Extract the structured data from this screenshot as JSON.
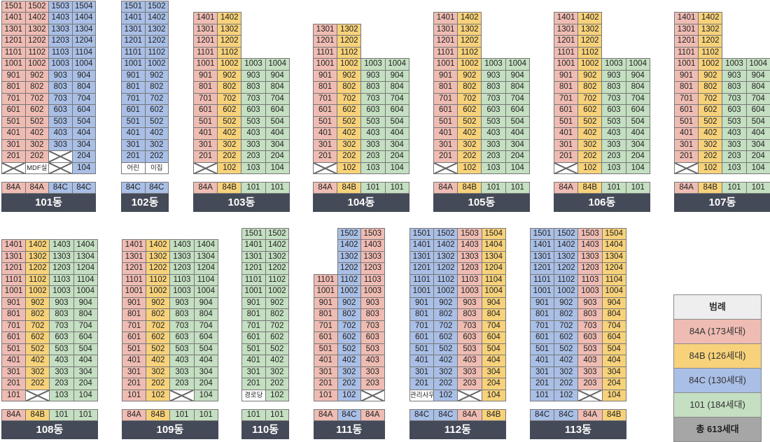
{
  "types": {
    "A": {
      "label": "84A",
      "color": "#efbcb3"
    },
    "B": {
      "label": "84B",
      "color": "#f7d27a"
    },
    "C": {
      "label": "84C",
      "color": "#a9bfe6"
    },
    "D": {
      "label": "101",
      "color": "#c4dfc1"
    }
  },
  "legend": {
    "title": "범례",
    "items": [
      {
        "text": "84A (173세대)",
        "color": "#efbcb3"
      },
      {
        "text": "84B (126세대)",
        "color": "#f7d27a"
      },
      {
        "text": "84C (130세대)",
        "color": "#a9bfe6"
      },
      {
        "text": "101 (184세대)",
        "color": "#c4dfc1"
      }
    ],
    "total": "총 613세대"
  },
  "buildings": [
    {
      "name": "101동",
      "types": [
        "A",
        "A",
        "C",
        "C"
      ],
      "rows": [
        [
          "1501",
          "1502",
          "1503",
          "1504"
        ],
        [
          "1401",
          "1402",
          "1403",
          "1404"
        ],
        [
          "1301",
          "1302",
          "1303",
          "1304"
        ],
        [
          "1201",
          "1202",
          "1203",
          "1204"
        ],
        [
          "1101",
          "1102",
          "1103",
          "1104"
        ],
        [
          "1001",
          "1002",
          "1003",
          "1004"
        ],
        [
          "901",
          "902",
          "903",
          "904"
        ],
        [
          "801",
          "802",
          "803",
          "804"
        ],
        [
          "701",
          "702",
          "703",
          "704"
        ],
        [
          "601",
          "602",
          "603",
          "604"
        ],
        [
          "501",
          "502",
          "503",
          "504"
        ],
        [
          "401",
          "402",
          "403",
          "404"
        ],
        [
          "301",
          "302",
          "303",
          "304"
        ],
        [
          "201",
          "202",
          "x",
          "204"
        ],
        [
          "x",
          "MDF실",
          "x",
          "104"
        ]
      ]
    },
    {
      "name": "102동",
      "types": [
        "C",
        "C"
      ],
      "rows": [
        [
          "1501",
          "1502"
        ],
        [
          "1401",
          "1402"
        ],
        [
          "1301",
          "1302"
        ],
        [
          "1201",
          "1202"
        ],
        [
          "1101",
          "1102"
        ],
        [
          "1001",
          "1002"
        ],
        [
          "901",
          "902"
        ],
        [
          "801",
          "802"
        ],
        [
          "701",
          "702"
        ],
        [
          "601",
          "602"
        ],
        [
          "501",
          "502"
        ],
        [
          "401",
          "402"
        ],
        [
          "301",
          "302"
        ],
        [
          "201",
          "202"
        ],
        [
          "어린",
          "이집"
        ]
      ]
    },
    {
      "name": "103동",
      "types": [
        "A",
        "B",
        "D",
        "D"
      ],
      "rows": [
        [
          "1401",
          "1402",
          "",
          ""
        ],
        [
          "1301",
          "1302",
          "",
          ""
        ],
        [
          "1201",
          "1202",
          "",
          ""
        ],
        [
          "1101",
          "1102",
          "",
          ""
        ],
        [
          "1001",
          "1002",
          "1003",
          "1004"
        ],
        [
          "901",
          "902",
          "903",
          "904"
        ],
        [
          "801",
          "802",
          "803",
          "804"
        ],
        [
          "701",
          "702",
          "703",
          "704"
        ],
        [
          "601",
          "602",
          "603",
          "604"
        ],
        [
          "501",
          "502",
          "503",
          "504"
        ],
        [
          "401",
          "402",
          "403",
          "404"
        ],
        [
          "301",
          "302",
          "303",
          "304"
        ],
        [
          "201",
          "202",
          "203",
          "204"
        ],
        [
          "x",
          "102",
          "103",
          "104"
        ]
      ]
    },
    {
      "name": "104동",
      "types": [
        "A",
        "B",
        "D",
        "D"
      ],
      "rows": [
        [
          "1301",
          "1302",
          "",
          ""
        ],
        [
          "1201",
          "1202",
          "",
          ""
        ],
        [
          "1101",
          "1102",
          "",
          ""
        ],
        [
          "1001",
          "1002",
          "1003",
          "1004"
        ],
        [
          "901",
          "902",
          "903",
          "904"
        ],
        [
          "801",
          "802",
          "803",
          "804"
        ],
        [
          "701",
          "702",
          "703",
          "704"
        ],
        [
          "601",
          "602",
          "603",
          "604"
        ],
        [
          "501",
          "502",
          "503",
          "504"
        ],
        [
          "401",
          "402",
          "403",
          "404"
        ],
        [
          "301",
          "302",
          "303",
          "304"
        ],
        [
          "201",
          "202",
          "203",
          "204"
        ],
        [
          "x",
          "102",
          "103",
          "104"
        ]
      ]
    },
    {
      "name": "105동",
      "types": [
        "A",
        "B",
        "D",
        "D"
      ],
      "rows": [
        [
          "1401",
          "1402",
          "",
          ""
        ],
        [
          "1301",
          "1302",
          "",
          ""
        ],
        [
          "1201",
          "1202",
          "",
          ""
        ],
        [
          "1101",
          "1102",
          "",
          ""
        ],
        [
          "1001",
          "1002",
          "1003",
          "1004"
        ],
        [
          "901",
          "902",
          "903",
          "904"
        ],
        [
          "801",
          "802",
          "803",
          "804"
        ],
        [
          "701",
          "702",
          "703",
          "704"
        ],
        [
          "601",
          "602",
          "603",
          "604"
        ],
        [
          "501",
          "502",
          "503",
          "504"
        ],
        [
          "401",
          "402",
          "403",
          "404"
        ],
        [
          "301",
          "302",
          "303",
          "304"
        ],
        [
          "201",
          "202",
          "203",
          "204"
        ],
        [
          "x",
          "102",
          "103",
          "104"
        ]
      ]
    },
    {
      "name": "106동",
      "types": [
        "A",
        "B",
        "D",
        "D"
      ],
      "rows": [
        [
          "1401",
          "1402",
          "",
          ""
        ],
        [
          "1301",
          "1302",
          "",
          ""
        ],
        [
          "1201",
          "1202",
          "",
          ""
        ],
        [
          "1101",
          "1102",
          "",
          ""
        ],
        [
          "1001",
          "1002",
          "1003",
          "1004"
        ],
        [
          "901",
          "902",
          "903",
          "904"
        ],
        [
          "801",
          "802",
          "803",
          "804"
        ],
        [
          "701",
          "702",
          "703",
          "704"
        ],
        [
          "601",
          "602",
          "603",
          "604"
        ],
        [
          "501",
          "502",
          "503",
          "504"
        ],
        [
          "401",
          "402",
          "403",
          "404"
        ],
        [
          "301",
          "302",
          "303",
          "304"
        ],
        [
          "201",
          "202",
          "203",
          "204"
        ],
        [
          "x",
          "102",
          "103",
          "104"
        ]
      ]
    },
    {
      "name": "107동",
      "types": [
        "A",
        "B",
        "D",
        "D"
      ],
      "rows": [
        [
          "1401",
          "1402",
          "",
          ""
        ],
        [
          "1301",
          "1302",
          "",
          ""
        ],
        [
          "1201",
          "1202",
          "",
          ""
        ],
        [
          "1101",
          "1102",
          "",
          ""
        ],
        [
          "1001",
          "1002",
          "1003",
          "1004"
        ],
        [
          "901",
          "902",
          "903",
          "904"
        ],
        [
          "801",
          "802",
          "803",
          "804"
        ],
        [
          "701",
          "702",
          "703",
          "704"
        ],
        [
          "601",
          "602",
          "603",
          "604"
        ],
        [
          "501",
          "502",
          "503",
          "504"
        ],
        [
          "401",
          "402",
          "403",
          "404"
        ],
        [
          "301",
          "302",
          "303",
          "304"
        ],
        [
          "201",
          "202",
          "203",
          "204"
        ],
        [
          "x",
          "102",
          "103",
          "104"
        ]
      ]
    },
    {
      "name": "108동",
      "types": [
        "A",
        "B",
        "D",
        "D"
      ],
      "rows": [
        [
          "1401",
          "1402",
          "1403",
          "1404"
        ],
        [
          "1301",
          "1302",
          "1303",
          "1304"
        ],
        [
          "1201",
          "1202",
          "1203",
          "1204"
        ],
        [
          "1101",
          "1102",
          "1103",
          "1104"
        ],
        [
          "1001",
          "1002",
          "1003",
          "1004"
        ],
        [
          "901",
          "902",
          "903",
          "904"
        ],
        [
          "801",
          "802",
          "803",
          "804"
        ],
        [
          "701",
          "702",
          "703",
          "704"
        ],
        [
          "601",
          "602",
          "603",
          "604"
        ],
        [
          "501",
          "502",
          "503",
          "504"
        ],
        [
          "401",
          "402",
          "403",
          "404"
        ],
        [
          "301",
          "302",
          "303",
          "304"
        ],
        [
          "201",
          "202",
          "203",
          "204"
        ],
        [
          "101",
          "x",
          "103",
          "104"
        ]
      ]
    },
    {
      "name": "109동",
      "types": [
        "A",
        "B",
        "D",
        "D"
      ],
      "rows": [
        [
          "1401",
          "1402",
          "1403",
          "1404"
        ],
        [
          "1301",
          "1302",
          "1303",
          "1304"
        ],
        [
          "1201",
          "1202",
          "1203",
          "1204"
        ],
        [
          "1101",
          "1102",
          "1103",
          "1104"
        ],
        [
          "1001",
          "1002",
          "1003",
          "1004"
        ],
        [
          "901",
          "902",
          "903",
          "904"
        ],
        [
          "801",
          "802",
          "803",
          "804"
        ],
        [
          "701",
          "702",
          "703",
          "704"
        ],
        [
          "601",
          "602",
          "603",
          "604"
        ],
        [
          "501",
          "502",
          "503",
          "504"
        ],
        [
          "401",
          "402",
          "403",
          "404"
        ],
        [
          "301",
          "302",
          "303",
          "304"
        ],
        [
          "201",
          "202",
          "203",
          "204"
        ],
        [
          "101",
          "102",
          "x",
          "104"
        ]
      ]
    },
    {
      "name": "110동",
      "types": [
        "D",
        "D"
      ],
      "rows": [
        [
          "1501",
          "1502"
        ],
        [
          "1401",
          "1402"
        ],
        [
          "1301",
          "1302"
        ],
        [
          "1201",
          "1202"
        ],
        [
          "1101",
          "1102"
        ],
        [
          "1001",
          "1002"
        ],
        [
          "901",
          "902"
        ],
        [
          "801",
          "802"
        ],
        [
          "701",
          "702"
        ],
        [
          "601",
          "602"
        ],
        [
          "501",
          "502"
        ],
        [
          "401",
          "402"
        ],
        [
          "301",
          "302"
        ],
        [
          "201",
          "202"
        ],
        [
          "경로당",
          "102"
        ]
      ]
    },
    {
      "name": "111동",
      "types": [
        "A",
        "C",
        "A"
      ],
      "rows": [
        [
          "",
          "1502",
          "1503"
        ],
        [
          "",
          "1402",
          "1403"
        ],
        [
          "",
          "1302",
          "1303"
        ],
        [
          "",
          "1202",
          "1203"
        ],
        [
          "1101",
          "1102",
          "1103"
        ],
        [
          "1001",
          "1002",
          "1003"
        ],
        [
          "901",
          "902",
          "903"
        ],
        [
          "801",
          "802",
          "803"
        ],
        [
          "701",
          "702",
          "703"
        ],
        [
          "601",
          "602",
          "603"
        ],
        [
          "501",
          "502",
          "503"
        ],
        [
          "401",
          "402",
          "403"
        ],
        [
          "301",
          "302",
          "303"
        ],
        [
          "201",
          "202",
          "203"
        ],
        [
          "101",
          "102",
          "x"
        ]
      ]
    },
    {
      "name": "112동",
      "types": [
        "C",
        "C",
        "A",
        "B"
      ],
      "rows": [
        [
          "1501",
          "1502",
          "1503",
          "1504"
        ],
        [
          "1401",
          "1402",
          "1403",
          "1404"
        ],
        [
          "1301",
          "1302",
          "1303",
          "1304"
        ],
        [
          "1201",
          "1202",
          "1203",
          "1204"
        ],
        [
          "1101",
          "1102",
          "1103",
          "1104"
        ],
        [
          "1001",
          "1002",
          "1003",
          "1004"
        ],
        [
          "901",
          "902",
          "903",
          "904"
        ],
        [
          "801",
          "802",
          "803",
          "804"
        ],
        [
          "701",
          "702",
          "703",
          "704"
        ],
        [
          "601",
          "602",
          "603",
          "604"
        ],
        [
          "501",
          "502",
          "503",
          "504"
        ],
        [
          "401",
          "402",
          "403",
          "404"
        ],
        [
          "301",
          "302",
          "303",
          "304"
        ],
        [
          "201",
          "202",
          "203",
          "204"
        ],
        [
          "관리사무소",
          "102",
          "x",
          "104"
        ]
      ]
    },
    {
      "name": "113동",
      "types": [
        "C",
        "C",
        "A",
        "B"
      ],
      "rows": [
        [
          "1501",
          "1502",
          "1503",
          "1504"
        ],
        [
          "1401",
          "1402",
          "1403",
          "1404"
        ],
        [
          "1301",
          "1302",
          "1303",
          "1304"
        ],
        [
          "1201",
          "1202",
          "1203",
          "1204"
        ],
        [
          "1101",
          "1102",
          "1103",
          "1104"
        ],
        [
          "1001",
          "1002",
          "1003",
          "1004"
        ],
        [
          "901",
          "902",
          "903",
          "904"
        ],
        [
          "801",
          "802",
          "803",
          "804"
        ],
        [
          "701",
          "702",
          "703",
          "704"
        ],
        [
          "601",
          "602",
          "603",
          "604"
        ],
        [
          "501",
          "502",
          "503",
          "504"
        ],
        [
          "401",
          "402",
          "403",
          "404"
        ],
        [
          "301",
          "302",
          "303",
          "304"
        ],
        [
          "201",
          "202",
          "203",
          "204"
        ],
        [
          "101",
          "102",
          "x",
          "104"
        ]
      ]
    }
  ]
}
